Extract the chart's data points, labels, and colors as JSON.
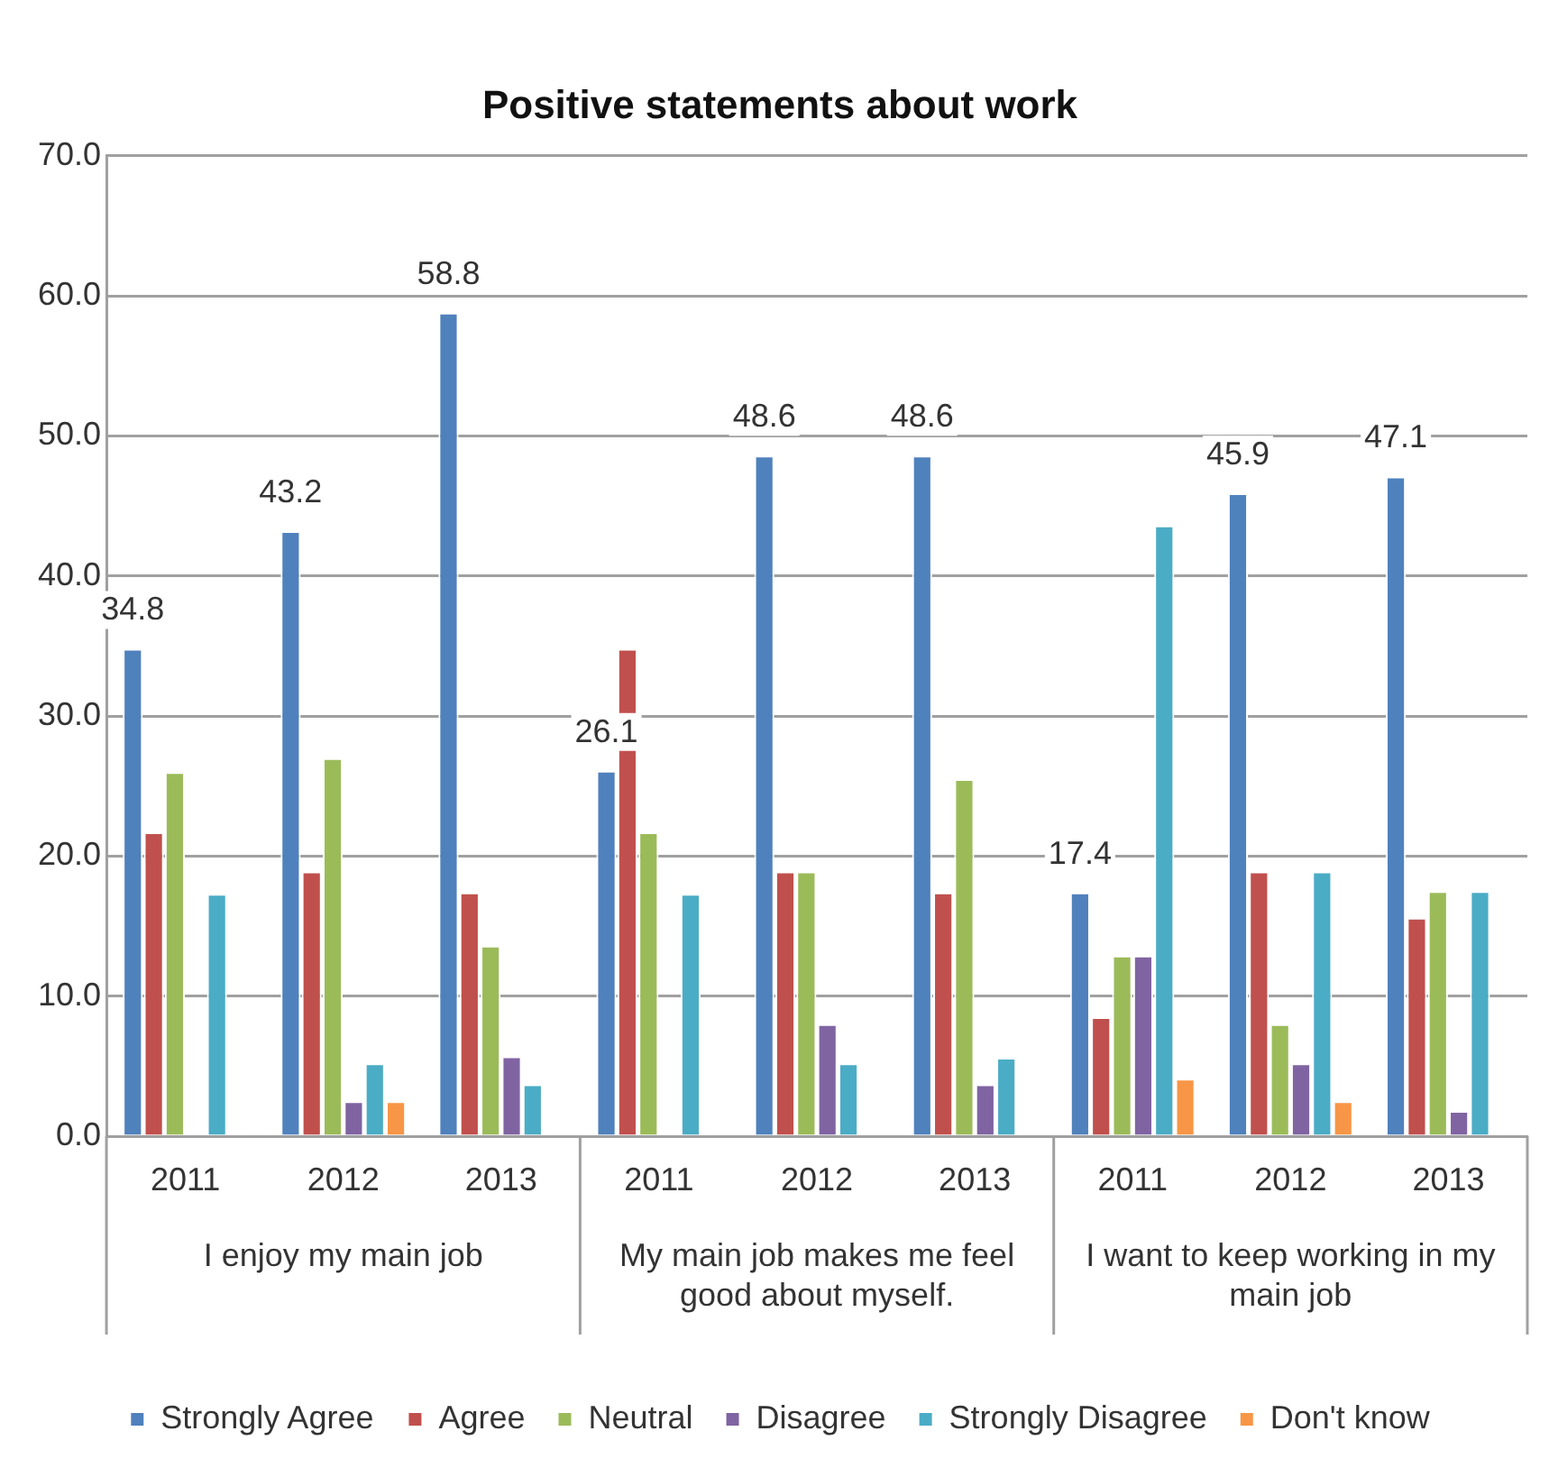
{
  "chart_data": {
    "type": "bar",
    "title": "Positive statements about work",
    "categories": [
      "2011",
      "2012",
      "2013",
      "2011",
      "2012",
      "2013",
      "2011",
      "2012",
      "2013"
    ],
    "annotations": [
      "I enjoy my main job",
      "My main job makes me feel good about myself.",
      "I want to keep working in my main job"
    ],
    "series": [
      {
        "name": "Strongly Agree",
        "color": "#4f81bd",
        "values": [
          34.8,
          43.2,
          58.8,
          26.1,
          48.6,
          48.6,
          17.4,
          45.9,
          47.1
        ],
        "value_labels": [
          "34.8",
          "43.2",
          "58.8",
          "26.1",
          "48.6",
          "48.6",
          "17.4",
          "45.9",
          "47.1"
        ]
      },
      {
        "name": "Agree",
        "color": "#c0504d",
        "values": [
          21.7,
          18.9,
          17.4,
          34.8,
          18.9,
          17.4,
          8.5,
          18.9,
          15.6
        ]
      },
      {
        "name": "Neutral",
        "color": "#9bbb59",
        "values": [
          26.0,
          27.0,
          13.6,
          21.7,
          18.9,
          25.5,
          12.9,
          8.0,
          17.5
        ]
      },
      {
        "name": "Disagree",
        "color": "#8064a2",
        "values": [
          null,
          2.5,
          5.7,
          null,
          8.0,
          3.7,
          12.9,
          5.2,
          1.8
        ]
      },
      {
        "name": "Strongly Disagree",
        "color": "#4bacc6",
        "values": [
          17.3,
          5.2,
          3.7,
          17.3,
          5.2,
          5.6,
          43.6,
          18.9,
          17.5
        ]
      },
      {
        "name": "Don't know",
        "color": "#f79646",
        "values": [
          null,
          2.5,
          null,
          null,
          null,
          null,
          4.1,
          2.5,
          null
        ]
      }
    ],
    "ylim": [
      0,
      70
    ],
    "yticks": [
      {
        "value": 0,
        "label": "0.0"
      },
      {
        "value": 10,
        "label": "10.0"
      },
      {
        "value": 20,
        "label": "20.0"
      },
      {
        "value": 30,
        "label": "30.0"
      },
      {
        "value": 40,
        "label": "40.0"
      },
      {
        "value": 50,
        "label": "50.0"
      },
      {
        "value": 60,
        "label": "60.0"
      },
      {
        "value": 70,
        "label": "70.0"
      }
    ],
    "grid": "y",
    "legend": "bottom"
  }
}
